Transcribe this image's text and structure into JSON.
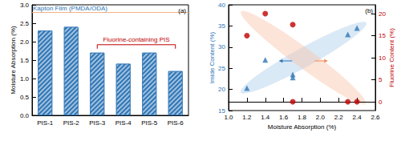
{
  "chart_data": [
    {
      "type": "bar",
      "label": "(a)",
      "categories": [
        "PIS-1",
        "PIS-2",
        "PIS-3",
        "PIS-4",
        "PIS-5",
        "PIS-6"
      ],
      "values": [
        2.3,
        2.4,
        1.7,
        1.4,
        1.7,
        1.2
      ],
      "color": "#2e75b6",
      "ylabel": "Moisture Absorption (%)",
      "ylim": [
        0,
        3
      ],
      "yticks": [
        {
          "value": 0,
          "label": "0.0"
        },
        0.5,
        {
          "value": 1,
          "label": "1.0"
        },
        1.5,
        {
          "value": 2,
          "label": "2.0"
        },
        2.5,
        {
          "value": 3,
          "label": "3.0"
        }
      ],
      "reference_line": {
        "text": "Kapton Film (PMDA/ODA)",
        "value": 2.8,
        "color": "#f4b183"
      },
      "annotation": {
        "text": "Fluorine-containing PIS",
        "color": "#c00000",
        "span": [
          "PIS-3",
          "PIS-6"
        ]
      }
    },
    {
      "type": "scatter",
      "label": "(b)",
      "xlabel": "Moisture Absorption (%)",
      "xlim": [
        1.0,
        2.6
      ],
      "xticks": [
        {
          "value": 1,
          "label": "1.0"
        },
        1.2,
        1.4,
        1.6,
        1.8,
        {
          "value": 2,
          "label": "2.0"
        },
        2.2,
        2.4,
        2.6
      ],
      "ylabel": "Imide Content (%)",
      "ylim": [
        15,
        40
      ],
      "yticks": [
        15,
        20,
        25,
        30,
        35,
        40
      ],
      "y2label": "Fluorine Content (%)",
      "y2lim": [
        -2,
        22
      ],
      "y2ticks": [
        0,
        5,
        10,
        15,
        20
      ],
      "series": [
        {
          "color": "#2e75b6",
          "marker": "triangle",
          "x": [
            1.2,
            1.4,
            1.7,
            1.7,
            2.3,
            2.4
          ],
          "values": [
            20.3,
            27,
            23.5,
            22.8,
            33,
            34.5
          ]
        },
        {
          "color": "#c00000",
          "marker": "circle",
          "axis": "y2",
          "x": [
            1.2,
            1.4,
            1.7,
            1.7,
            2.3,
            2.4
          ],
          "values": [
            15,
            20,
            17.5,
            0,
            0,
            0
          ]
        }
      ]
    }
  ]
}
